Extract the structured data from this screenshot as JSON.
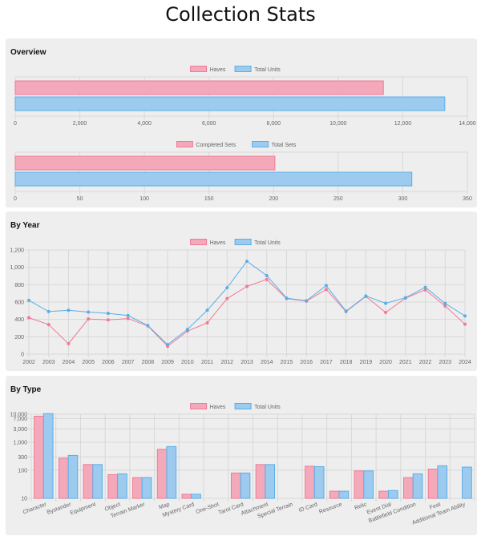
{
  "page": {
    "title": "Collection Stats"
  },
  "sections": {
    "overview": "Overview",
    "by_year": "By Year",
    "by_type": "By Type"
  },
  "colors": {
    "haves_fill": "#f4a9ba",
    "haves_stroke": "#f07a94",
    "total_fill": "#9ccbef",
    "total_stroke": "#5aaee6",
    "grid": "#d8d8d8",
    "axis_text": "#666666"
  },
  "chart_data": [
    {
      "id": "overview_units",
      "type": "bar",
      "orientation": "horizontal",
      "series": [
        {
          "name": "Haves",
          "values": [
            11400
          ]
        },
        {
          "name": "Total Units",
          "values": [
            13300
          ]
        }
      ],
      "xlim": [
        0,
        14000
      ],
      "xticks": [
        0,
        2000,
        4000,
        6000,
        8000,
        10000,
        12000,
        14000
      ],
      "xtick_labels": [
        "0",
        "2,000",
        "4,000",
        "6,000",
        "8,000",
        "10,000",
        "12,000",
        "14,000"
      ],
      "legend": "top-center",
      "grid": true
    },
    {
      "id": "overview_sets",
      "type": "bar",
      "orientation": "horizontal",
      "series": [
        {
          "name": "Completed Sets",
          "values": [
            201
          ]
        },
        {
          "name": "Total Sets",
          "values": [
            307
          ]
        }
      ],
      "xlim": [
        0,
        350
      ],
      "xticks": [
        0,
        50,
        100,
        150,
        200,
        250,
        300,
        350
      ],
      "xtick_labels": [
        "0",
        "50",
        "100",
        "150",
        "200",
        "250",
        "300",
        "350"
      ],
      "legend": "top-center",
      "grid": true
    },
    {
      "id": "by_year",
      "type": "line",
      "categories": [
        "2002",
        "2003",
        "2004",
        "2005",
        "2006",
        "2007",
        "2008",
        "2009",
        "2010",
        "2011",
        "2012",
        "2013",
        "2014",
        "2015",
        "2016",
        "2017",
        "2018",
        "2019",
        "2020",
        "2021",
        "2022",
        "2023",
        "2024"
      ],
      "series": [
        {
          "name": "Haves",
          "values": [
            420,
            340,
            120,
            405,
            395,
            410,
            325,
            90,
            265,
            360,
            640,
            780,
            860,
            640,
            610,
            745,
            490,
            665,
            480,
            645,
            740,
            555,
            345
          ]
        },
        {
          "name": "Total Units",
          "values": [
            620,
            490,
            505,
            485,
            470,
            445,
            330,
            110,
            285,
            505,
            765,
            1070,
            905,
            645,
            615,
            790,
            495,
            670,
            585,
            650,
            770,
            585,
            440
          ]
        }
      ],
      "ylim": [
        0,
        1200
      ],
      "yticks": [
        0,
        200,
        400,
        600,
        800,
        1000,
        1200
      ],
      "ytick_labels": [
        "0",
        "200",
        "400",
        "600",
        "800",
        "1,000",
        "1,200"
      ],
      "legend": "top-center",
      "grid": true
    },
    {
      "id": "by_type",
      "type": "bar",
      "scale": "log",
      "categories": [
        "Character",
        "Bystander",
        "Equipment",
        "Object",
        "Terrain Marker",
        "Map",
        "Mystery Card",
        "One-Shot",
        "Tarot Card",
        "Attachment",
        "Special Terrain",
        "ID Card",
        "Resource",
        "Relic",
        "Event Dial",
        "Battlefield Condition",
        "Feat",
        "Additional Team Ability"
      ],
      "series": [
        {
          "name": "Haves",
          "values": [
            8500,
            270,
            160,
            70,
            55,
            560,
            14,
            null,
            80,
            160,
            null,
            140,
            18,
            95,
            18,
            55,
            110,
            null
          ]
        },
        {
          "name": "Total Units",
          "values": [
            10500,
            340,
            160,
            75,
            55,
            700,
            14,
            null,
            80,
            160,
            null,
            135,
            18,
            95,
            19,
            75,
            145,
            130
          ]
        }
      ],
      "ylim": [
        10,
        10000
      ],
      "yticks": [
        10,
        100,
        300,
        1000,
        3000,
        7000,
        10000
      ],
      "ytick_labels": [
        "10",
        "100",
        "300",
        "1,000",
        "3,000",
        "7,000",
        "10,000"
      ],
      "legend": "top-center",
      "grid": true
    }
  ]
}
